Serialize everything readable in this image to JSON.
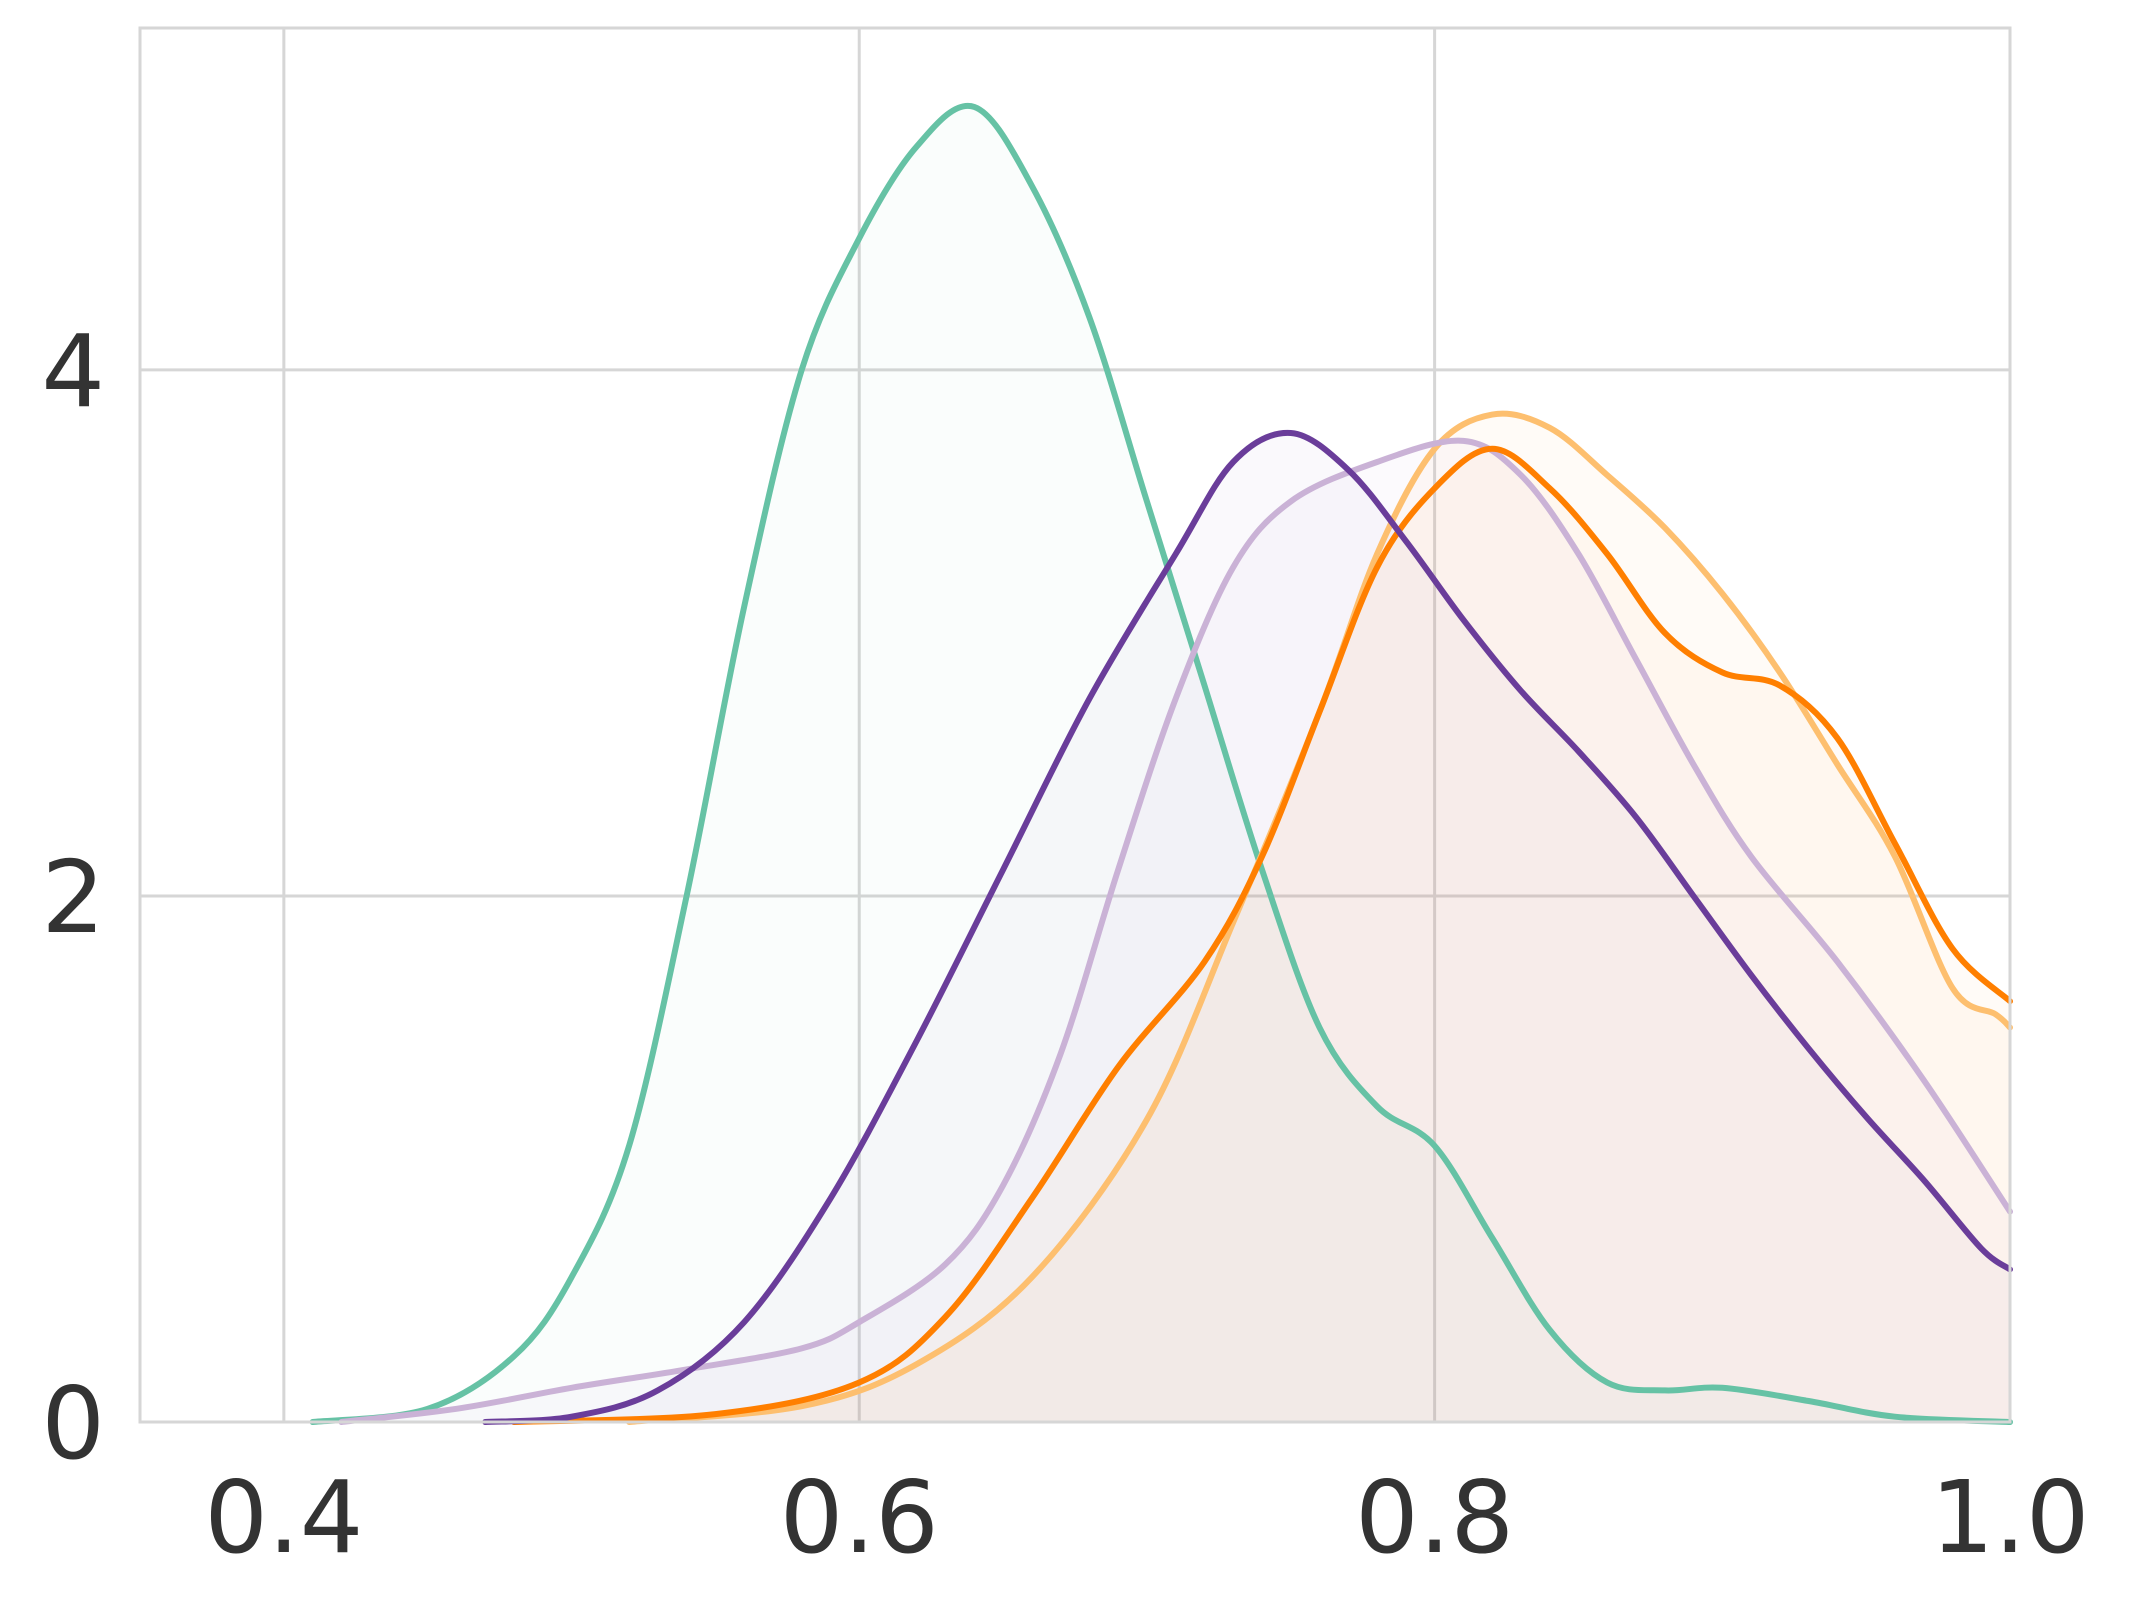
{
  "chart_data": {
    "type": "area",
    "title": "",
    "xlabel": "",
    "ylabel": "",
    "xlim": [
      0.35,
      1.0
    ],
    "ylim": [
      0,
      5.3
    ],
    "grid": true,
    "x_ticks": [
      0.4,
      0.6,
      0.8,
      1.0
    ],
    "x_tick_labels": [
      "0.4",
      "0.6",
      "0.8",
      "1.0"
    ],
    "y_ticks": [
      0,
      2,
      4
    ],
    "y_tick_labels": [
      "0",
      "2",
      "4"
    ],
    "series": [
      {
        "color": "#66c2a5",
        "fill_opacity": 0.03,
        "points": [
          [
            0.41,
            0.0
          ],
          [
            0.45,
            0.05
          ],
          [
            0.48,
            0.25
          ],
          [
            0.5,
            0.55
          ],
          [
            0.52,
            1.05
          ],
          [
            0.54,
            2.0
          ],
          [
            0.56,
            3.1
          ],
          [
            0.58,
            4.0
          ],
          [
            0.6,
            4.5
          ],
          [
            0.62,
            4.85
          ],
          [
            0.64,
            5.0
          ],
          [
            0.66,
            4.7
          ],
          [
            0.68,
            4.2
          ],
          [
            0.7,
            3.5
          ],
          [
            0.72,
            2.8
          ],
          [
            0.74,
            2.1
          ],
          [
            0.76,
            1.5
          ],
          [
            0.78,
            1.2
          ],
          [
            0.8,
            1.05
          ],
          [
            0.82,
            0.7
          ],
          [
            0.84,
            0.35
          ],
          [
            0.86,
            0.15
          ],
          [
            0.88,
            0.12
          ],
          [
            0.9,
            0.13
          ],
          [
            0.93,
            0.08
          ],
          [
            0.96,
            0.02
          ],
          [
            1.0,
            0.0
          ]
        ]
      },
      {
        "color": "#fdbf6f",
        "fill_opacity": 0.06,
        "points": [
          [
            0.52,
            0.0
          ],
          [
            0.58,
            0.06
          ],
          [
            0.62,
            0.22
          ],
          [
            0.66,
            0.55
          ],
          [
            0.7,
            1.15
          ],
          [
            0.73,
            1.9
          ],
          [
            0.76,
            2.7
          ],
          [
            0.78,
            3.3
          ],
          [
            0.8,
            3.7
          ],
          [
            0.82,
            3.83
          ],
          [
            0.84,
            3.78
          ],
          [
            0.86,
            3.6
          ],
          [
            0.88,
            3.4
          ],
          [
            0.9,
            3.15
          ],
          [
            0.92,
            2.85
          ],
          [
            0.94,
            2.5
          ],
          [
            0.96,
            2.15
          ],
          [
            0.98,
            1.65
          ],
          [
            0.995,
            1.55
          ],
          [
            1.0,
            1.5
          ]
        ]
      },
      {
        "color": "#cab2d6",
        "fill_opacity": 0.06,
        "points": [
          [
            0.42,
            0.0
          ],
          [
            0.46,
            0.05
          ],
          [
            0.5,
            0.13
          ],
          [
            0.54,
            0.2
          ],
          [
            0.58,
            0.28
          ],
          [
            0.6,
            0.38
          ],
          [
            0.63,
            0.6
          ],
          [
            0.65,
            0.9
          ],
          [
            0.67,
            1.4
          ],
          [
            0.69,
            2.1
          ],
          [
            0.71,
            2.75
          ],
          [
            0.73,
            3.25
          ],
          [
            0.75,
            3.5
          ],
          [
            0.78,
            3.65
          ],
          [
            0.81,
            3.73
          ],
          [
            0.83,
            3.6
          ],
          [
            0.85,
            3.3
          ],
          [
            0.87,
            2.9
          ],
          [
            0.89,
            2.5
          ],
          [
            0.91,
            2.15
          ],
          [
            0.94,
            1.75
          ],
          [
            0.97,
            1.3
          ],
          [
            1.0,
            0.8
          ]
        ]
      },
      {
        "color": "#ff7f00",
        "fill_opacity": 0.03,
        "points": [
          [
            0.48,
            0.0
          ],
          [
            0.55,
            0.03
          ],
          [
            0.6,
            0.15
          ],
          [
            0.63,
            0.4
          ],
          [
            0.66,
            0.85
          ],
          [
            0.69,
            1.35
          ],
          [
            0.72,
            1.75
          ],
          [
            0.74,
            2.15
          ],
          [
            0.76,
            2.7
          ],
          [
            0.78,
            3.25
          ],
          [
            0.8,
            3.55
          ],
          [
            0.82,
            3.7
          ],
          [
            0.84,
            3.55
          ],
          [
            0.86,
            3.3
          ],
          [
            0.88,
            3.0
          ],
          [
            0.9,
            2.85
          ],
          [
            0.92,
            2.8
          ],
          [
            0.94,
            2.6
          ],
          [
            0.96,
            2.2
          ],
          [
            0.98,
            1.8
          ],
          [
            1.0,
            1.6
          ]
        ]
      },
      {
        "color": "#6a3d9a",
        "fill_opacity": 0.03,
        "points": [
          [
            0.47,
            0.0
          ],
          [
            0.5,
            0.02
          ],
          [
            0.53,
            0.12
          ],
          [
            0.56,
            0.38
          ],
          [
            0.59,
            0.85
          ],
          [
            0.62,
            1.45
          ],
          [
            0.65,
            2.1
          ],
          [
            0.68,
            2.75
          ],
          [
            0.71,
            3.3
          ],
          [
            0.73,
            3.65
          ],
          [
            0.75,
            3.76
          ],
          [
            0.77,
            3.62
          ],
          [
            0.79,
            3.35
          ],
          [
            0.81,
            3.05
          ],
          [
            0.83,
            2.78
          ],
          [
            0.85,
            2.55
          ],
          [
            0.87,
            2.3
          ],
          [
            0.89,
            2.0
          ],
          [
            0.91,
            1.7
          ],
          [
            0.93,
            1.42
          ],
          [
            0.95,
            1.16
          ],
          [
            0.97,
            0.92
          ],
          [
            0.99,
            0.66
          ],
          [
            1.0,
            0.58
          ]
        ]
      }
    ]
  }
}
